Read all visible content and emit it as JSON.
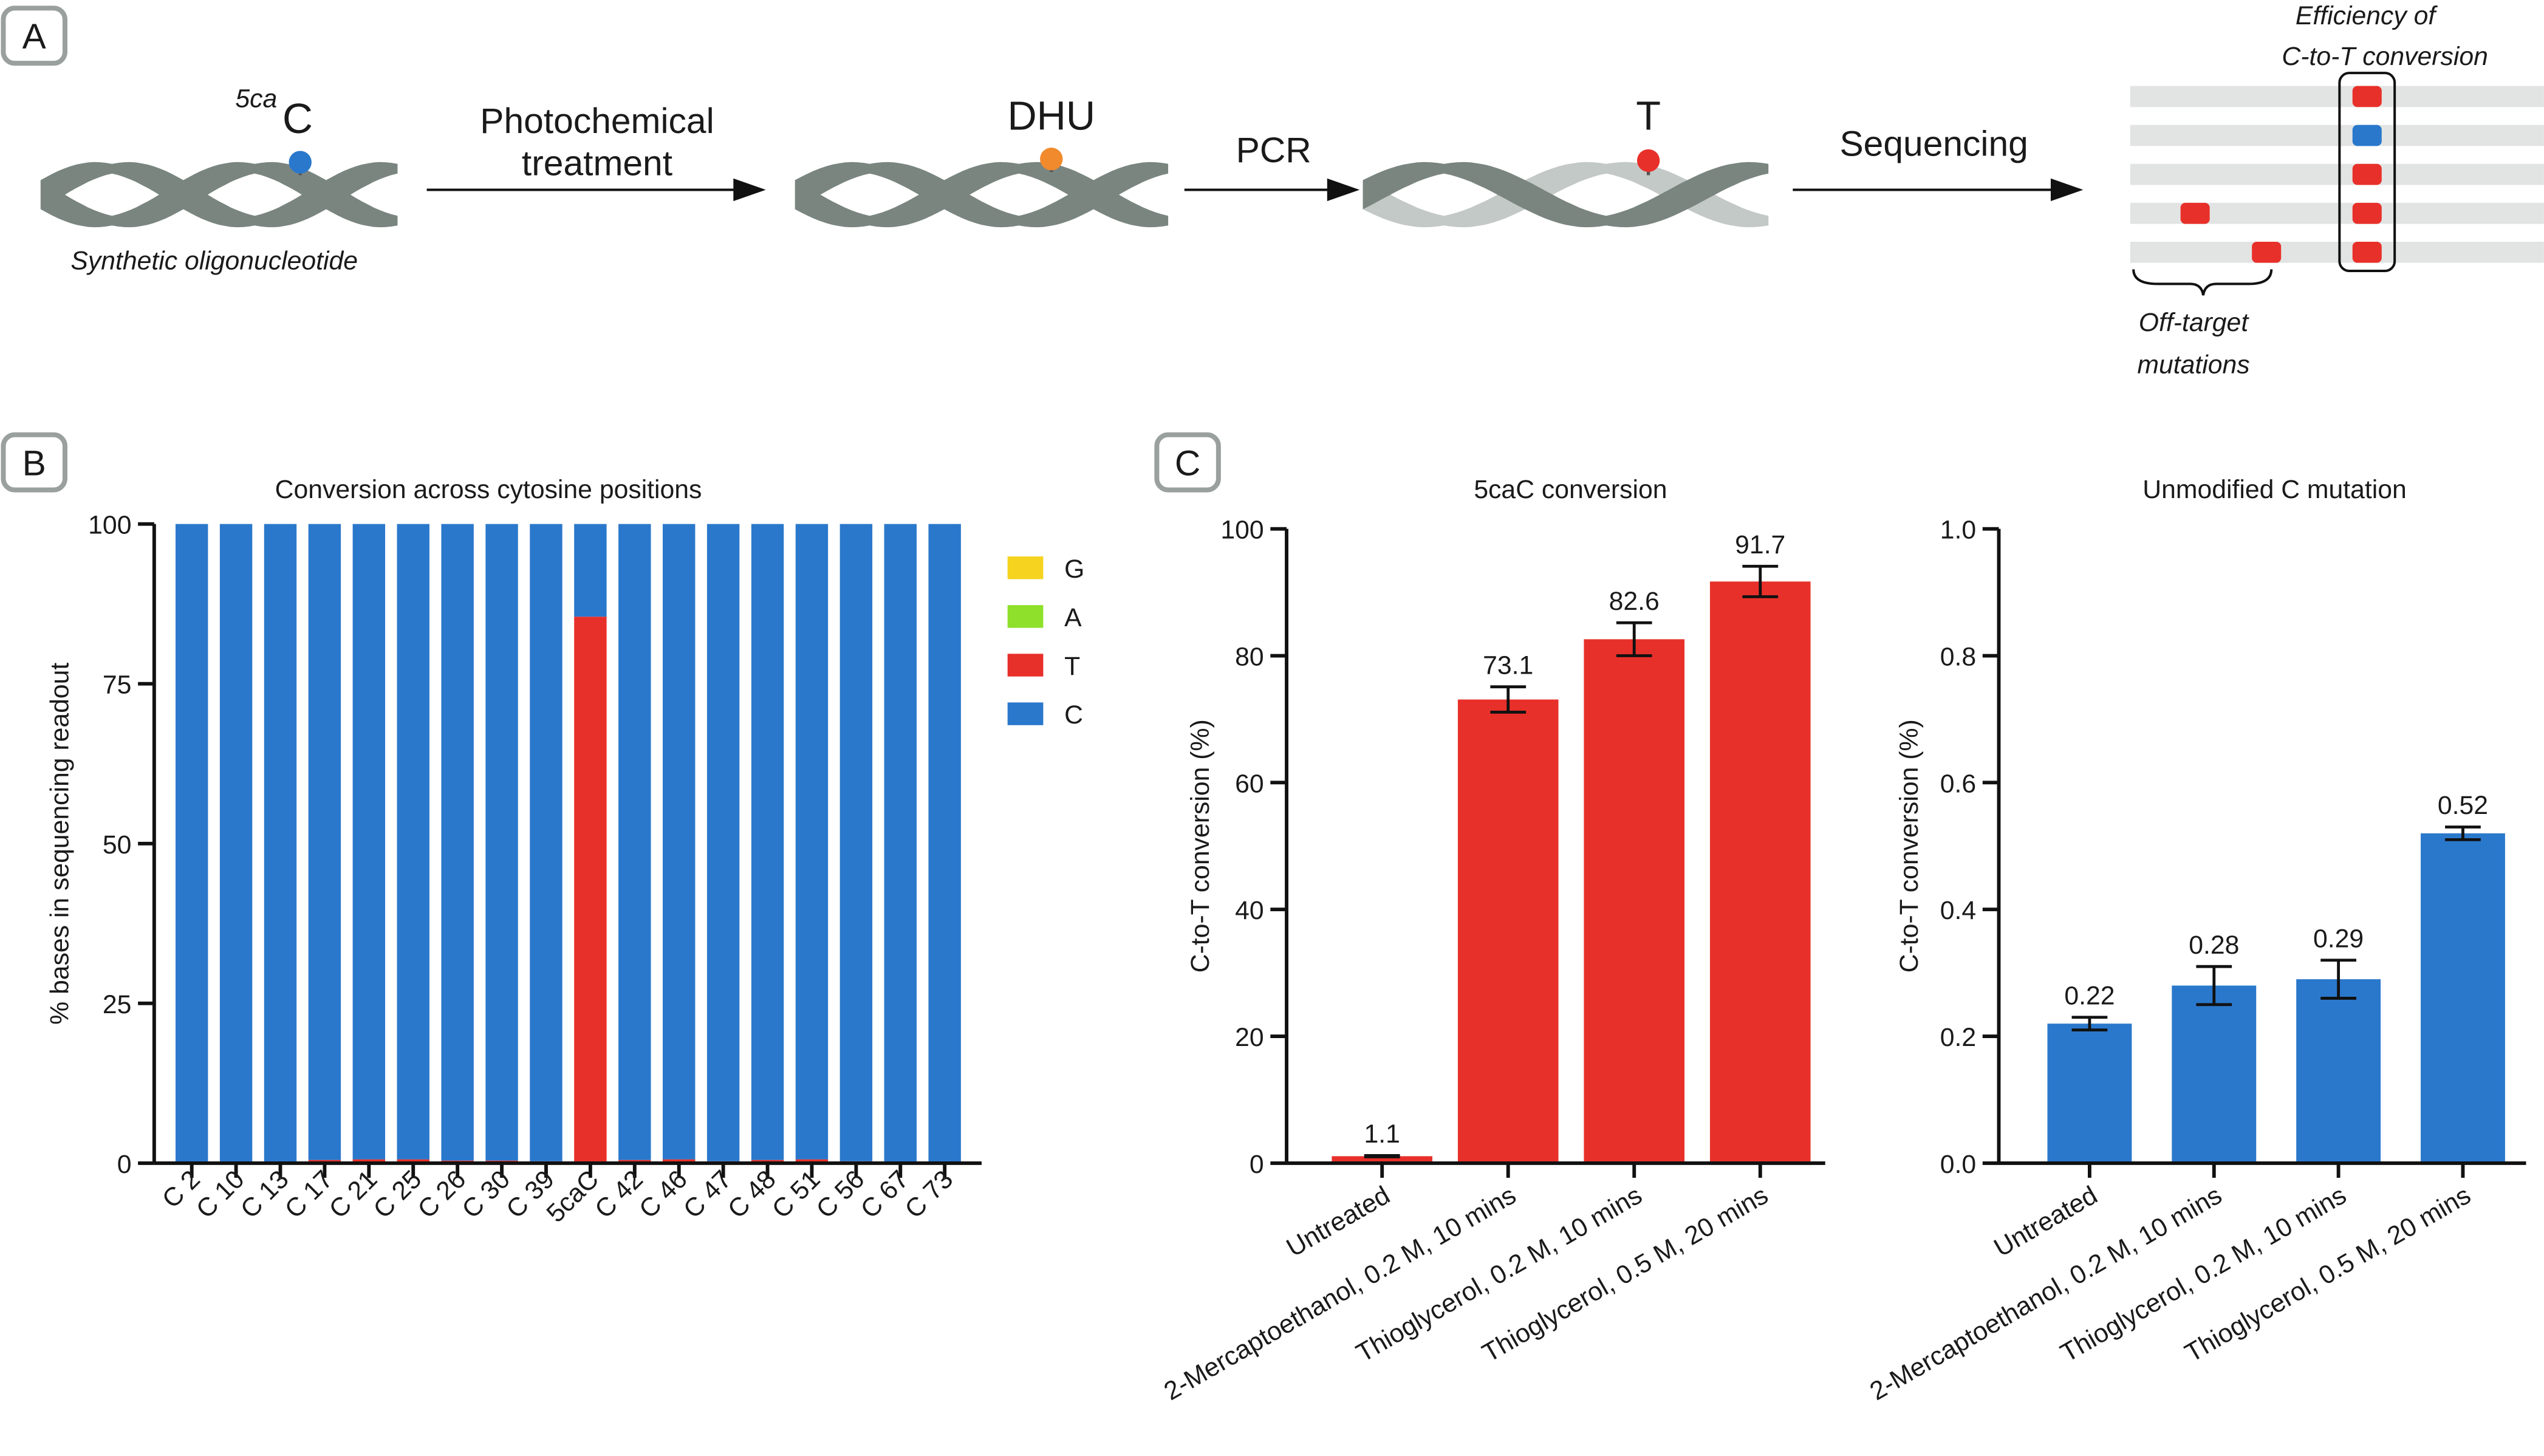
{
  "panel_labels": [
    "A",
    "B",
    "C"
  ],
  "diagram": {
    "modification": "5ca",
    "base": "C",
    "step1_line1": "Photochemical",
    "step1_line2": "treatment",
    "intermediate": "DHU",
    "step2": "PCR",
    "product": "T",
    "step3": "Sequencing",
    "substrate": "Synthetic oligonucleotide",
    "efficiency_line1": "Efficiency of",
    "efficiency_line2": "C-to-T conversion",
    "offtarget_line1": "Off-target",
    "offtarget_line2": "mutations"
  },
  "chart_data": [
    {
      "type": "stacked-bar",
      "title": "Conversion across cytosine positions",
      "y_label": "% bases in sequencing readout",
      "categories": [
        "C 2",
        "C 10",
        "C 13",
        "C 17",
        "C 21",
        "C 25",
        "C 26",
        "C 30",
        "C 39",
        "5caC",
        "C 42",
        "C 46",
        "C 47",
        "C 48",
        "C 51",
        "C 56",
        "C 67",
        "C 73"
      ],
      "series": [
        {
          "name": "G",
          "color": "#f5d31f",
          "values": [
            0,
            0,
            0,
            0,
            0,
            0,
            0,
            0,
            0,
            0,
            0,
            0,
            0,
            0,
            0,
            0,
            0,
            0
          ]
        },
        {
          "name": "A",
          "color": "#8ee02a",
          "values": [
            0,
            0,
            0,
            0,
            0,
            0,
            0,
            0,
            0,
            0,
            0,
            0,
            0,
            0,
            0,
            0,
            0,
            0
          ]
        },
        {
          "name": "T",
          "color": "#e8302a",
          "values": [
            0.2,
            0.2,
            0.2,
            0.5,
            0.6,
            0.6,
            0.4,
            0.4,
            0.3,
            85.5,
            0.5,
            0.6,
            0.3,
            0.5,
            0.6,
            0.3,
            0.2,
            0.2
          ]
        },
        {
          "name": "C",
          "color": "#2a78cc",
          "values": [
            99.8,
            99.8,
            99.8,
            99.5,
            99.4,
            99.4,
            99.6,
            99.6,
            99.7,
            14.5,
            99.5,
            99.4,
            99.7,
            99.5,
            99.4,
            99.7,
            99.8,
            99.8
          ]
        }
      ],
      "ylim": [
        0,
        100
      ],
      "yticks": [
        0,
        25,
        50,
        75,
        100
      ]
    },
    {
      "type": "bar",
      "title": "5caC conversion",
      "y_label": "C-to-T conversion (%)",
      "color": "#e8302a",
      "categories": [
        "Untreated",
        "2-Mercaptoethanol, 0.2 M, 10 mins",
        "Thioglycerol, 0.2 M, 10 mins",
        "Thioglycerol, 0.5 M, 20 mins"
      ],
      "values": [
        1.1,
        73.1,
        82.6,
        91.7
      ],
      "errors": [
        0.1,
        2.0,
        2.6,
        2.4
      ],
      "ylim": [
        0,
        100
      ],
      "yticks": [
        0,
        20,
        40,
        60,
        80,
        100
      ]
    },
    {
      "type": "bar",
      "title": "Unmodified C mutation",
      "y_label": "C-to-T conversion (%)",
      "color": "#2a78cc",
      "categories": [
        "Untreated",
        "2-Mercaptoethanol, 0.2 M, 10 mins",
        "Thioglycerol, 0.2 M, 10 mins",
        "Thioglycerol, 0.5 M, 20 mins"
      ],
      "values": [
        0.22,
        0.28,
        0.29,
        0.52
      ],
      "errors": [
        0.01,
        0.03,
        0.03,
        0.01
      ],
      "ylim": [
        0,
        1
      ],
      "yticks": [
        {
          "value": 0,
          "label": "0.0"
        },
        0.2,
        0.4,
        0.6,
        0.8,
        {
          "value": 1,
          "label": "1.0"
        }
      ]
    }
  ]
}
